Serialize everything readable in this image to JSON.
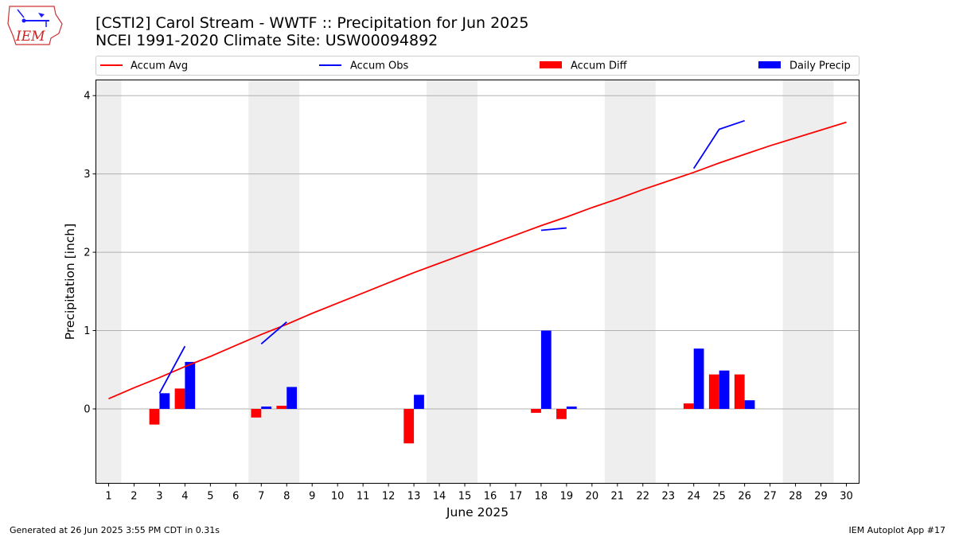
{
  "header": {
    "title_line1": "[CSTI2] Carol Stream - WWTF :: Precipitation for Jun 2025",
    "title_line2": "NCEI 1991-2020 Climate Site: USW00094892",
    "logo_text": "IEM"
  },
  "footer": {
    "left": "Generated at 26 Jun 2025 3:55 PM CDT in 0.31s",
    "right": "IEM Autoplot App #17"
  },
  "chart_data": {
    "type": "bar",
    "xlabel": "June 2025",
    "ylabel": "Precipitation [inch]",
    "xlim": [
      0.5,
      30.5
    ],
    "ylim": [
      -0.95,
      4.2
    ],
    "yticks": [
      0,
      1,
      2,
      3,
      4
    ],
    "days": [
      1,
      2,
      3,
      4,
      5,
      6,
      7,
      8,
      9,
      10,
      11,
      12,
      13,
      14,
      15,
      16,
      17,
      18,
      19,
      20,
      21,
      22,
      23,
      24,
      25,
      26,
      27,
      28,
      29,
      30
    ],
    "weekend_bands": [
      [
        0.5,
        1.5
      ],
      [
        6.5,
        8.5
      ],
      [
        13.5,
        15.5
      ],
      [
        20.5,
        22.5
      ],
      [
        27.5,
        29.5
      ]
    ],
    "grid": "horizontal",
    "legend": {
      "position": "top",
      "entries": [
        {
          "label": "Accum Avg",
          "kind": "line",
          "color": "#ff0000"
        },
        {
          "label": "Accum Obs",
          "kind": "line",
          "color": "#0000ff"
        },
        {
          "label": "Accum Diff",
          "kind": "bar",
          "color": "#ff0000"
        },
        {
          "label": "Daily Precip",
          "kind": "bar",
          "color": "#0000ff"
        }
      ]
    },
    "accum_avg": [
      0.13,
      0.27,
      0.4,
      0.54,
      0.67,
      0.81,
      0.95,
      1.08,
      1.22,
      1.35,
      1.48,
      1.61,
      1.74,
      1.86,
      1.98,
      2.1,
      2.22,
      2.34,
      2.45,
      2.57,
      2.68,
      2.8,
      2.91,
      3.02,
      3.14,
      3.25,
      3.36,
      3.46,
      3.56,
      3.66
    ],
    "accum_obs_segments": [
      [
        [
          3,
          0.2
        ],
        [
          4,
          0.8
        ]
      ],
      [
        [
          7,
          0.83
        ],
        [
          8,
          1.11
        ]
      ],
      [
        [
          18,
          2.28
        ],
        [
          19,
          2.31
        ]
      ],
      [
        [
          24,
          3.07
        ],
        [
          25,
          3.57
        ],
        [
          26,
          3.68
        ]
      ]
    ],
    "accum_diff": [
      {
        "day": 3,
        "value": -0.2
      },
      {
        "day": 4,
        "value": 0.26
      },
      {
        "day": 7,
        "value": -0.11
      },
      {
        "day": 8,
        "value": 0.04
      },
      {
        "day": 13,
        "value": -0.44
      },
      {
        "day": 18,
        "value": -0.05
      },
      {
        "day": 19,
        "value": -0.13
      },
      {
        "day": 24,
        "value": 0.07
      },
      {
        "day": 25,
        "value": 0.44
      },
      {
        "day": 26,
        "value": 0.44
      }
    ],
    "daily_precip": [
      {
        "day": 3,
        "value": 0.2
      },
      {
        "day": 4,
        "value": 0.6
      },
      {
        "day": 7,
        "value": 0.03
      },
      {
        "day": 8,
        "value": 0.28
      },
      {
        "day": 13,
        "value": 0.18
      },
      {
        "day": 18,
        "value": 1.0
      },
      {
        "day": 19,
        "value": 0.03
      },
      {
        "day": 24,
        "value": 0.77
      },
      {
        "day": 25,
        "value": 0.49
      },
      {
        "day": 26,
        "value": 0.11
      }
    ],
    "colors": {
      "avg": "#ff0000",
      "obs": "#0000ff",
      "diff": "#ff0000",
      "daily": "#0000ff",
      "weekend": "#eeeeee",
      "grid": "#b0b0b0"
    }
  }
}
